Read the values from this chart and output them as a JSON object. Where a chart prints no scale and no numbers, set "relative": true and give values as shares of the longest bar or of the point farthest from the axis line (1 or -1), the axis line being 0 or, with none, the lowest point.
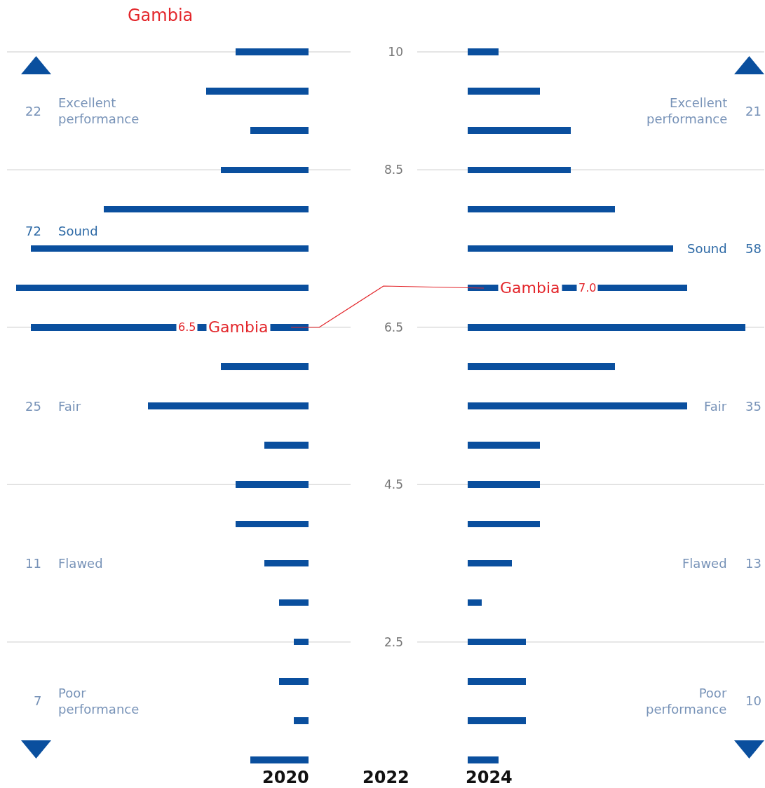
{
  "chart_data": [
    {
      "type": "bar",
      "orientation": "horizontal",
      "relative": true,
      "subtitle": "Gambia",
      "tick_labels": "y",
      "categories": [
        "10",
        null,
        null,
        "8.5",
        null,
        null,
        null,
        "6.5",
        null,
        null,
        null,
        "4.5",
        null,
        null,
        null,
        "2.5",
        null,
        null,
        null
      ],
      "series": [
        {
          "name": "2020",
          "color": "#0a4f9e",
          "values": [
            -0.25,
            -0.35,
            -0.2,
            -0.3,
            -0.7,
            -0.95,
            -1,
            -0.95,
            -0.3,
            -0.55,
            -0.15,
            -0.25,
            -0.25,
            -0.15,
            -0.1,
            -0.05,
            -0.1,
            -0.05,
            -0.2
          ]
        }
      ],
      "grid": "y",
      "annotations": [
        "22",
        "Excellent performance",
        "72",
        "Sound",
        "25",
        "Fair",
        "11",
        "Flawed",
        "7",
        "Poor performance",
        "6.5",
        "Gambia",
        "2022"
      ]
    },
    {
      "type": "bar",
      "orientation": "horizontal",
      "relative": true,
      "tick_labels": false,
      "categories": [
        null,
        null,
        null,
        null,
        null,
        null,
        null,
        null,
        null,
        null,
        null,
        null,
        null,
        null,
        null,
        null,
        null,
        null,
        null
      ],
      "series": [
        {
          "name": "2024",
          "color": "#0a4f9e",
          "values": [
            0.11,
            0.26,
            0.37,
            0.37,
            0.53,
            0.74,
            0.79,
            1,
            0.53,
            0.79,
            0.26,
            0.26,
            0.26,
            0.16,
            0.05,
            0.21,
            0.21,
            0.21,
            0.11
          ]
        }
      ],
      "grid": "y",
      "annotations": [
        "Excellent performance",
        "21",
        "Sound",
        "58",
        "Fair",
        "35",
        "Flawed",
        "13",
        "Poor performance",
        "10",
        "Gambia",
        "7.0"
      ]
    }
  ]
}
